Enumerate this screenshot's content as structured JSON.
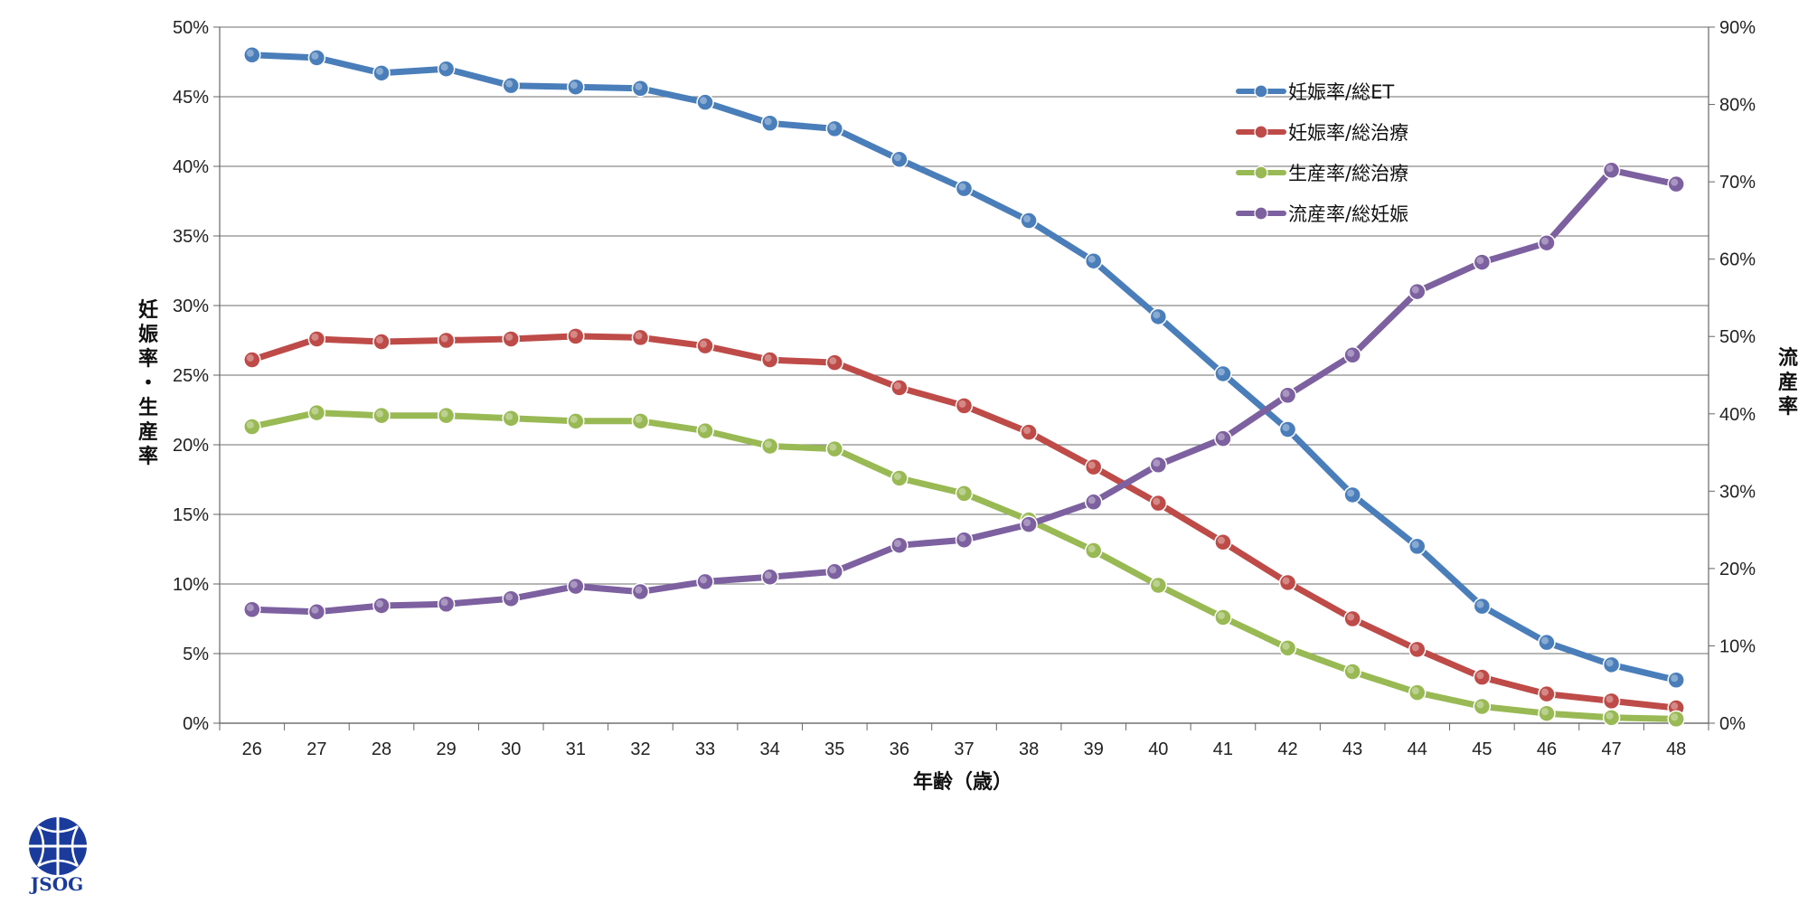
{
  "chart_data": {
    "type": "line",
    "xlabel": "年齢（歳）",
    "ylabel_left": "妊娠率・生産率",
    "ylabel_right": "流産率",
    "categories": [
      "26",
      "27",
      "28",
      "29",
      "30",
      "31",
      "32",
      "33",
      "34",
      "35",
      "36",
      "37",
      "38",
      "39",
      "40",
      "41",
      "42",
      "43",
      "44",
      "45",
      "46",
      "47",
      "48"
    ],
    "y_left": {
      "min": 0,
      "max": 50,
      "step": 5,
      "unit": "%",
      "ticks": [
        "0%",
        "5%",
        "10%",
        "15%",
        "20%",
        "25%",
        "30%",
        "35%",
        "40%",
        "45%",
        "50%"
      ]
    },
    "y_right": {
      "min": 0,
      "max": 90,
      "step": 10,
      "unit": "%",
      "ticks": [
        "0%",
        "10%",
        "20%",
        "30%",
        "40%",
        "50%",
        "60%",
        "70%",
        "80%",
        "90%"
      ]
    },
    "grid": true,
    "legend_position": "top-right",
    "series": [
      {
        "name": "妊娠率/総ET",
        "axis": "left",
        "color": "#4a7ebb",
        "values": [
          48.0,
          47.8,
          46.7,
          47.0,
          45.8,
          45.7,
          45.6,
          44.6,
          43.1,
          42.7,
          40.5,
          38.4,
          36.1,
          33.2,
          29.2,
          25.1,
          21.1,
          16.4,
          12.7,
          8.4,
          5.8,
          4.2,
          3.1
        ]
      },
      {
        "name": "妊娠率/総治療",
        "axis": "left",
        "color": "#be4b48",
        "values": [
          26.1,
          27.6,
          27.4,
          27.5,
          27.6,
          27.8,
          27.7,
          27.1,
          26.1,
          25.9,
          24.1,
          22.8,
          20.9,
          18.4,
          15.8,
          13.0,
          10.1,
          7.5,
          5.3,
          3.3,
          2.1,
          1.6,
          1.1
        ]
      },
      {
        "name": "生産率/総治療",
        "axis": "left",
        "color": "#98b954",
        "values": [
          21.3,
          22.3,
          22.1,
          22.1,
          21.9,
          21.7,
          21.7,
          21.0,
          19.9,
          19.7,
          17.6,
          16.5,
          14.6,
          12.4,
          9.9,
          7.6,
          5.4,
          3.7,
          2.2,
          1.2,
          0.7,
          0.4,
          0.3
        ]
      },
      {
        "name": "流産率/総妊娠",
        "axis": "right",
        "color": "#7d60a0",
        "values": [
          14.7,
          14.4,
          15.2,
          15.4,
          16.1,
          17.7,
          17.0,
          18.3,
          18.9,
          19.6,
          23.0,
          23.7,
          25.7,
          28.6,
          33.4,
          36.8,
          42.4,
          47.6,
          55.8,
          59.6,
          62.1,
          71.5,
          69.7
        ]
      }
    ]
  },
  "logo": {
    "text": "JSOG",
    "color": "#1a3b9c"
  }
}
